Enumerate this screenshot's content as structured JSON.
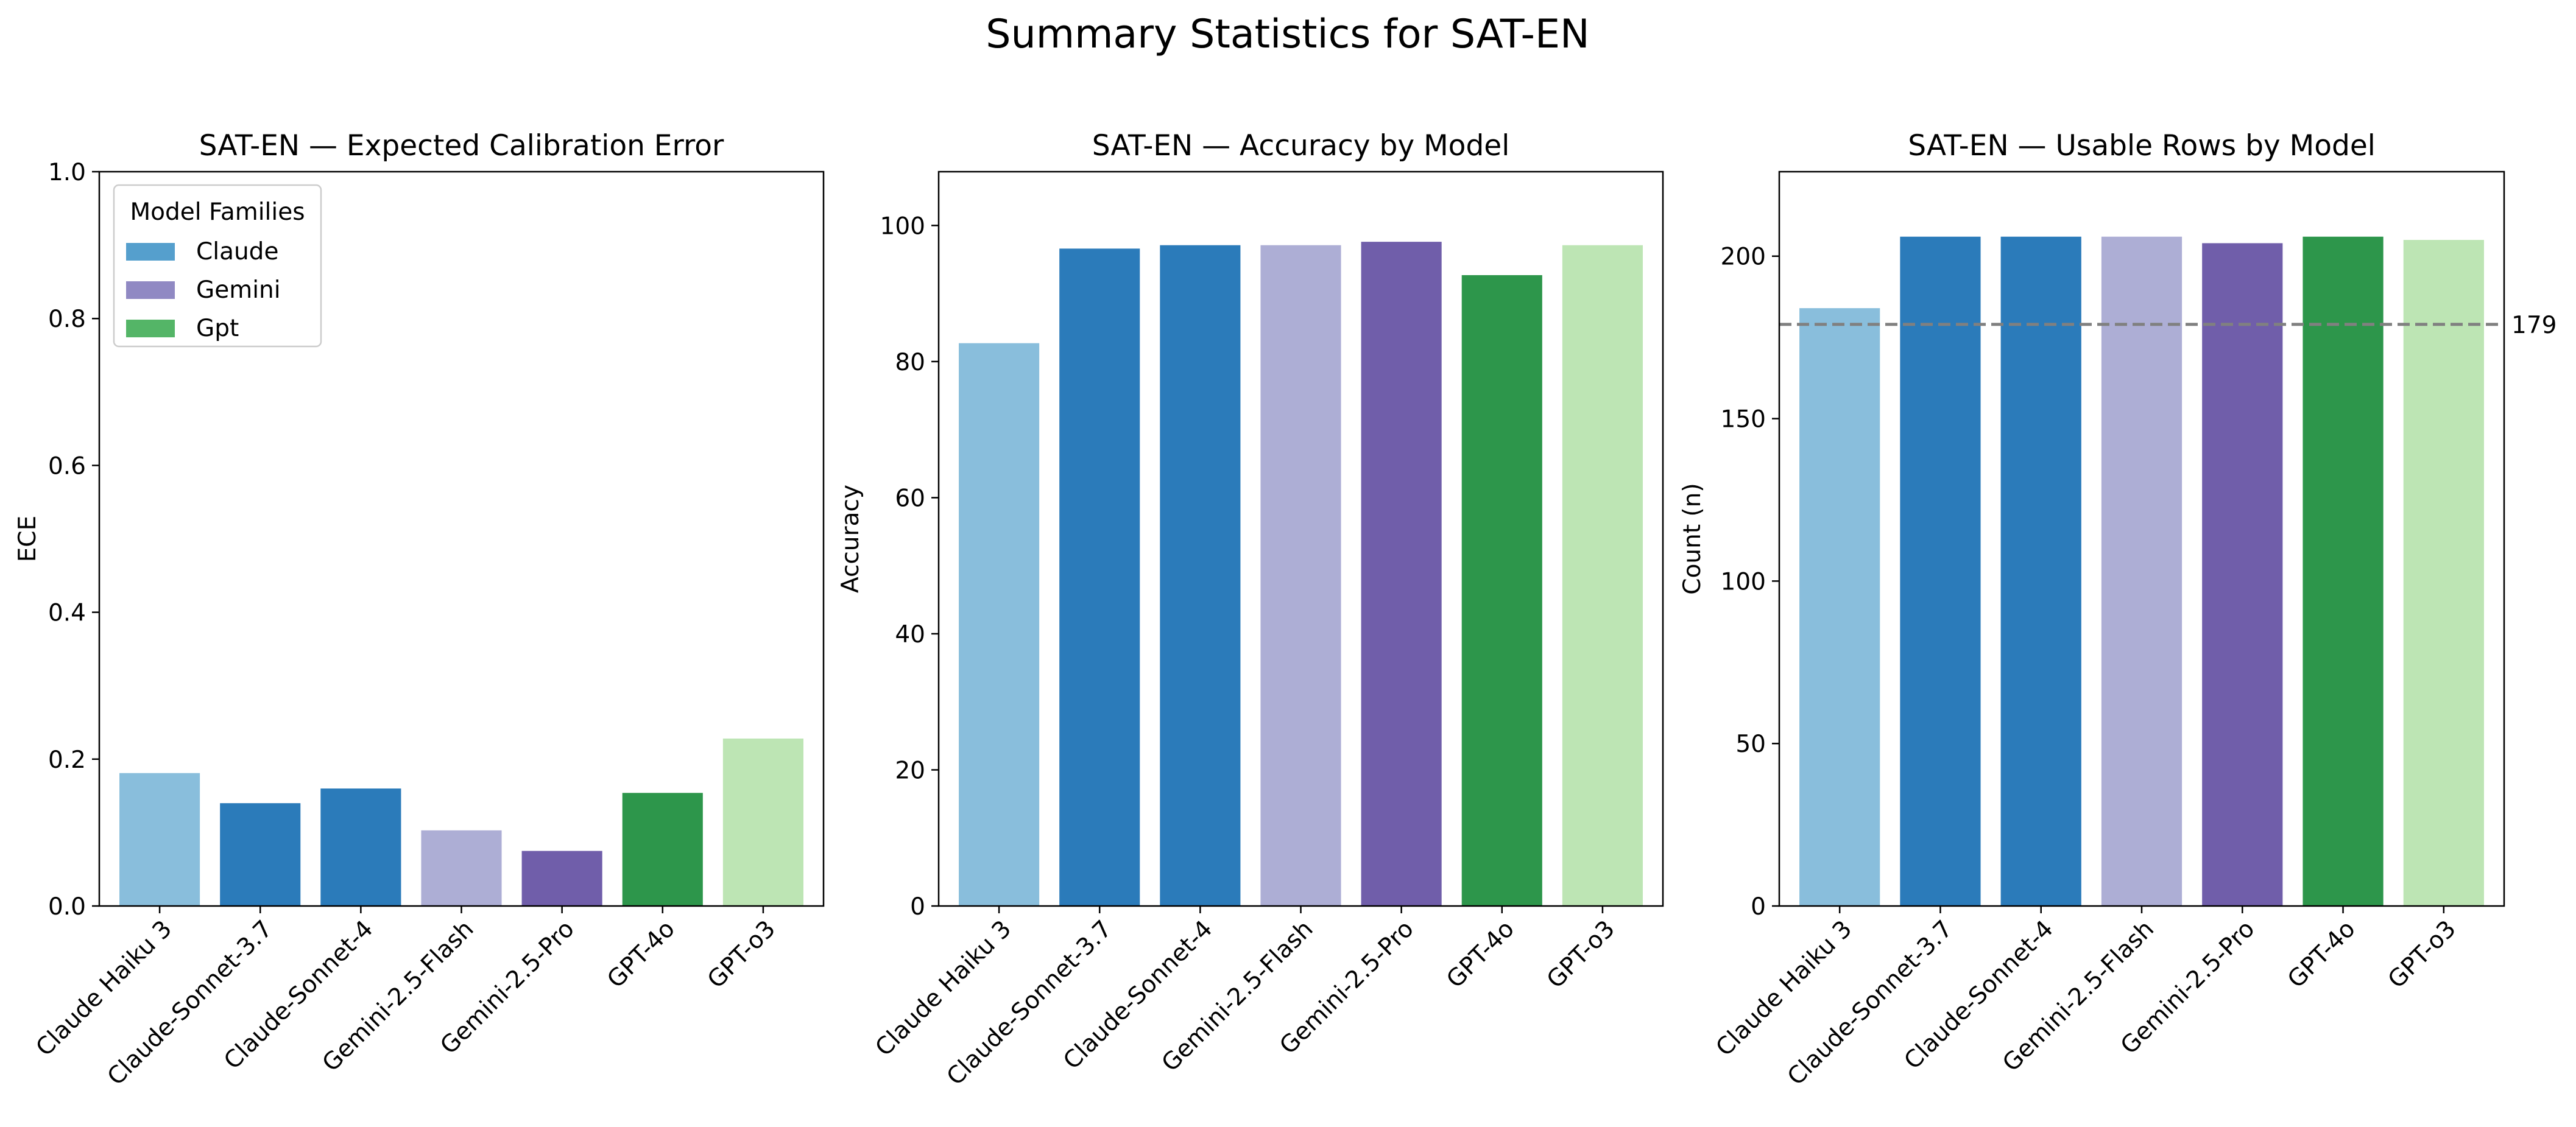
{
  "title": "Summary Statistics for SAT-EN",
  "colors": {
    "Claude Haiku 3": "#89bedc",
    "Claude-Sonnet-3.7": "#2b7bba",
    "Claude-Sonnet-4": "#2b7bba",
    "Gemini-2.5-Flash": "#adaed5",
    "Gemini-2.5-Pro": "#705eaa",
    "GPT-4o": "#2d964b",
    "GPT-o3": "#bde5b4"
  },
  "legend": {
    "title": "Model Families",
    "entries": [
      {
        "label": "Claude",
        "color": "#559fcd"
      },
      {
        "label": "Gemini",
        "color": "#9089c3"
      },
      {
        "label": "Gpt",
        "color": "#54b567"
      }
    ]
  },
  "chart_data": [
    {
      "type": "bar",
      "title": "SAT-EN — Expected Calibration Error",
      "xlabel": "",
      "ylabel": "ECE",
      "categories": [
        "Claude Haiku 3",
        "Claude-Sonnet-3.7",
        "Claude-Sonnet-4",
        "Gemini-2.5-Flash",
        "Gemini-2.5-Pro",
        "GPT-4o",
        "GPT-o3"
      ],
      "values": [
        0.181,
        0.14,
        0.16,
        0.103,
        0.075,
        0.154,
        0.228
      ],
      "ylim": [
        0,
        1.0
      ],
      "yticks": [
        0.0,
        0.2,
        0.4,
        0.6,
        0.8,
        1.0
      ],
      "ytick_labels": [
        "0.0",
        "0.2",
        "0.4",
        "0.6",
        "0.8",
        "1.0"
      ],
      "grid": false,
      "legend": "top-left"
    },
    {
      "type": "bar",
      "title": "SAT-EN — Accuracy by Model",
      "xlabel": "",
      "ylabel": "Accuracy",
      "categories": [
        "Claude Haiku 3",
        "Claude-Sonnet-3.7",
        "Claude-Sonnet-4",
        "Gemini-2.5-Flash",
        "Gemini-2.5-Pro",
        "GPT-4o",
        "GPT-o3"
      ],
      "values": [
        82.7,
        96.6,
        97.1,
        97.1,
        97.6,
        92.7,
        97.1
      ],
      "ylim": [
        0,
        107.9
      ],
      "yticks": [
        0,
        20,
        40,
        60,
        80,
        100
      ],
      "ytick_labels": [
        "0",
        "20",
        "40",
        "60",
        "80",
        "100"
      ],
      "grid": false
    },
    {
      "type": "bar",
      "title": "SAT-EN — Usable Rows by Model",
      "xlabel": "",
      "ylabel": "Count (n)",
      "categories": [
        "Claude Haiku 3",
        "Claude-Sonnet-3.7",
        "Claude-Sonnet-4",
        "Gemini-2.5-Flash",
        "Gemini-2.5-Pro",
        "GPT-4o",
        "GPT-o3"
      ],
      "values": [
        184,
        206,
        206,
        206,
        204,
        206,
        205
      ],
      "ylim": [
        0,
        226
      ],
      "yticks": [
        0,
        50,
        100,
        150,
        200
      ],
      "ytick_labels": [
        "0",
        "50",
        "100",
        "150",
        "200"
      ],
      "grid": false,
      "reference_line": {
        "value": 179,
        "label": "179",
        "color": "#808080",
        "style": "dashed"
      }
    }
  ]
}
